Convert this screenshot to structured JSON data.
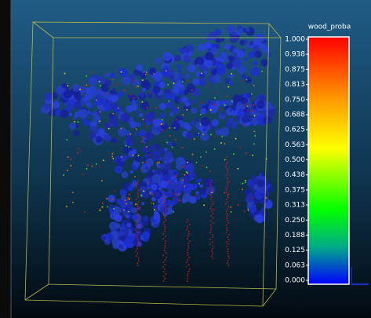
{
  "scalar_field": {
    "title": "wood_proba",
    "ticks": [
      "1.000",
      "0.938",
      "0.875",
      "0.813",
      "0.750",
      "0.688",
      "0.625",
      "0.563",
      "0.500",
      "0.438",
      "0.375",
      "0.313",
      "0.250",
      "0.188",
      "0.125",
      "0.063",
      "0.000"
    ]
  }
}
